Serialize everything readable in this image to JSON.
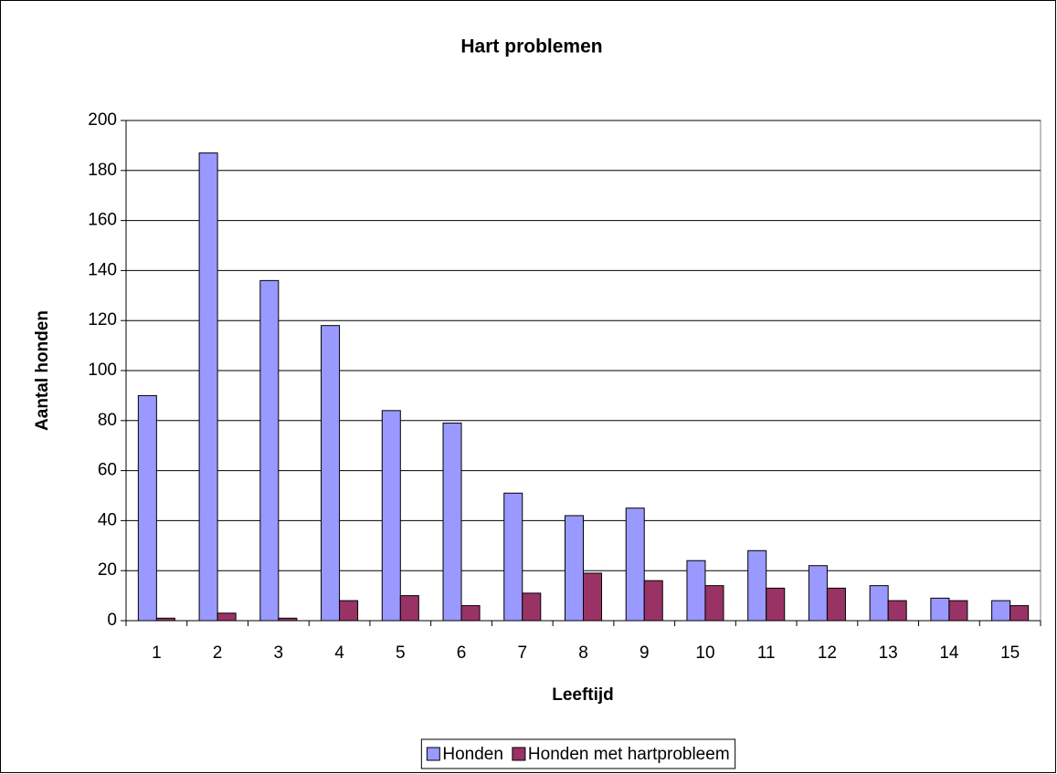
{
  "chart_data": {
    "type": "bar",
    "title": "Hart problemen",
    "x_label": "Leeftijd",
    "y_label": "Aantal honden",
    "categories": [
      "1",
      "2",
      "3",
      "4",
      "5",
      "6",
      "7",
      "8",
      "9",
      "10",
      "11",
      "12",
      "13",
      "14",
      "15"
    ],
    "series": [
      {
        "name": "Honden",
        "color": "#9999ff",
        "values": [
          90,
          187,
          136,
          118,
          84,
          79,
          51,
          42,
          45,
          24,
          28,
          22,
          14,
          9,
          8
        ]
      },
      {
        "name": "Honden met hartprobleem",
        "color": "#993366",
        "values": [
          1,
          3,
          1,
          8,
          10,
          6,
          11,
          19,
          16,
          14,
          13,
          13,
          8,
          8,
          6
        ]
      }
    ],
    "ylim": [
      0,
      200
    ],
    "yticks": [
      0,
      20,
      40,
      60,
      80,
      100,
      120,
      140,
      160,
      180,
      200
    ],
    "grid": true,
    "legend": "bottom"
  }
}
